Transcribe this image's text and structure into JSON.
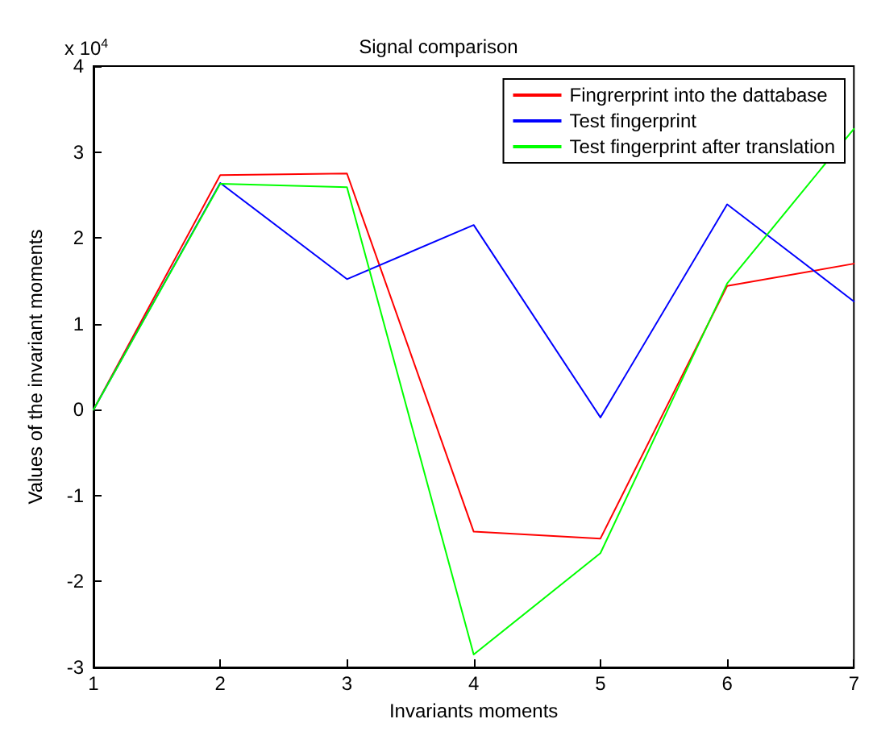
{
  "chart_data": {
    "type": "line",
    "title": "Signal comparison",
    "xlabel": "Invariants moments",
    "ylabel": "Values of the invariant moments",
    "x": [
      1,
      2,
      3,
      4,
      5,
      6,
      7
    ],
    "series": [
      {
        "name": "Fingrerprint into the dattabase",
        "color": "#ff0000",
        "values": [
          0,
          2.73,
          2.75,
          -1.42,
          -1.5,
          1.44,
          1.7
        ]
      },
      {
        "name": "Test fingerprint",
        "color": "#0000ff",
        "values": [
          0,
          2.64,
          1.52,
          2.15,
          -0.09,
          2.39,
          1.26
        ]
      },
      {
        "name": "Test fingerprint after translation",
        "color": "#00ff00",
        "values": [
          0,
          2.63,
          2.59,
          -2.85,
          -1.67,
          1.47,
          3.27
        ]
      }
    ],
    "xlim": [
      1,
      7
    ],
    "xticks": [
      1,
      2,
      3,
      4,
      5,
      6,
      7
    ],
    "ylim": [
      -3,
      4
    ],
    "yticks": [
      -3,
      -2,
      -1,
      0,
      1,
      2,
      3,
      4
    ],
    "annotations": [
      "x 10$^{4}$"
    ],
    "legend": "top right",
    "grid": false,
    "marker": "none",
    "line_style": "solid"
  }
}
